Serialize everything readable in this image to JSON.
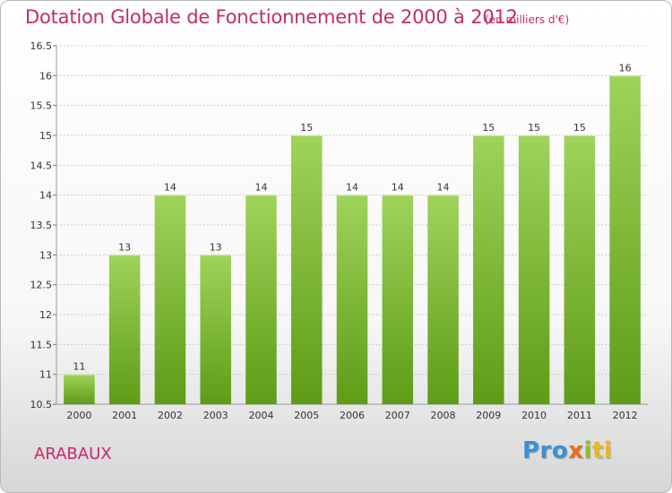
{
  "header": {
    "title": "Dotation Globale de Fonctionnement de 2000 à 2012",
    "unit": "(en milliers d'€)"
  },
  "footer": {
    "commune": "ARABAUX",
    "logo_parts": [
      "Pro",
      "x",
      "i",
      "ti"
    ]
  },
  "colors": {
    "title": "#c52a6a",
    "bar_light": "#9fd35a",
    "bar_dark": "#5e9c17",
    "grid": "#cccccc"
  },
  "chart_data": {
    "type": "bar",
    "title": "Dotation Globale de Fonctionnement de 2000 à 2012",
    "xlabel": "",
    "ylabel": "",
    "categories": [
      "2000",
      "2001",
      "2002",
      "2003",
      "2004",
      "2005",
      "2006",
      "2007",
      "2008",
      "2009",
      "2010",
      "2011",
      "2012"
    ],
    "values": [
      11,
      13,
      14,
      13,
      14,
      15,
      14,
      14,
      14,
      15,
      15,
      15,
      16
    ],
    "value_labels": [
      "11",
      "13",
      "14",
      "13",
      "14",
      "15",
      "14",
      "14",
      "14",
      "15",
      "15",
      "15",
      "16"
    ],
    "ylim": [
      10.5,
      16.5
    ],
    "yticks": [
      10.5,
      11,
      11.5,
      12,
      12.5,
      13,
      13.5,
      14,
      14.5,
      15,
      15.5,
      16,
      16.5
    ],
    "ytick_labels": [
      "10.5",
      "11",
      "11.5",
      "12",
      "12.5",
      "13",
      "13.5",
      "14",
      "14.5",
      "15",
      "15.5",
      "16",
      "16.5"
    ],
    "grid": true,
    "legend": "none"
  }
}
